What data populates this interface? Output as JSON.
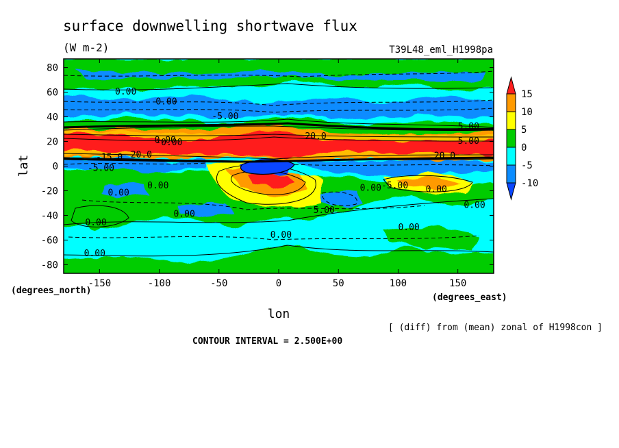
{
  "chart_data": {
    "type": "heatmap",
    "title": "surface downwelling shortwave flux",
    "units": "(W m-2)",
    "experiment": "T39L48_eml_H1998pa",
    "xlabel": "lon",
    "ylabel": "lat",
    "x_unit_label": "(degrees_east)",
    "y_unit_label": "(degrees_north)",
    "xlim": [
      -180,
      180
    ],
    "ylim": [
      -87,
      87
    ],
    "x_ticks": [
      "-150",
      "-100",
      "-50",
      "0",
      "50",
      "100",
      "150"
    ],
    "y_ticks": [
      "80",
      "60",
      "40",
      "20",
      "0",
      "-20",
      "-40",
      "-60",
      "-80"
    ],
    "colorbar": {
      "labels": [
        "15",
        "10",
        "5",
        "0",
        "-5",
        "-10"
      ],
      "colors": [
        "#ff1e1e",
        "#ff9a00",
        "#ffff00",
        "#00cc00",
        "#00ffff",
        "#0a8cff",
        "#0a46ff"
      ]
    },
    "contour_labels": [
      {
        "text": "0.00",
        "lon": -137,
        "lat": 58
      },
      {
        "text": "0.00",
        "lon": -103,
        "lat": 50
      },
      {
        "text": "-5.00",
        "lon": -56,
        "lat": 38
      },
      {
        "text": "0.00",
        "lon": -104,
        "lat": 19
      },
      {
        "text": "-0.00",
        "lon": -103,
        "lat": 17
      },
      {
        "text": "20.0",
        "lon": -124,
        "lat": 7
      },
      {
        "text": "-15.0",
        "lon": -153,
        "lat": 5
      },
      {
        "text": "-5.00",
        "lon": -160,
        "lat": -4
      },
      {
        "text": "20.0",
        "lon": 22,
        "lat": 22
      },
      {
        "text": "5.00",
        "lon": 150,
        "lat": 30
      },
      {
        "text": "5.00",
        "lon": 150,
        "lat": 18
      },
      {
        "text": "20.0",
        "lon": 130,
        "lat": 6
      },
      {
        "text": "0.00",
        "lon": 68,
        "lat": -20
      },
      {
        "text": "-5.00",
        "lon": 86,
        "lat": -18
      },
      {
        "text": "0.00",
        "lon": 123,
        "lat": -21
      },
      {
        "text": "0.00",
        "lon": 155,
        "lat": -34
      },
      {
        "text": "0.00",
        "lon": -143,
        "lat": -24
      },
      {
        "text": "0.00",
        "lon": -110,
        "lat": -18
      },
      {
        "text": "5.00",
        "lon": 29,
        "lat": -38
      },
      {
        "text": "0.00",
        "lon": -88,
        "lat": -41
      },
      {
        "text": "0.00",
        "lon": -162,
        "lat": -48
      },
      {
        "text": "0.00",
        "lon": 100,
        "lat": -52
      },
      {
        "text": "0.00",
        "lon": -7,
        "lat": -58
      },
      {
        "text": "0.00",
        "lon": -163,
        "lat": -73
      }
    ]
  },
  "annotations": {
    "diff_note": "[ (diff) from (mean) zonal of H1998con ]",
    "contour_interval": "CONTOUR INTERVAL = 2.500E+00"
  }
}
